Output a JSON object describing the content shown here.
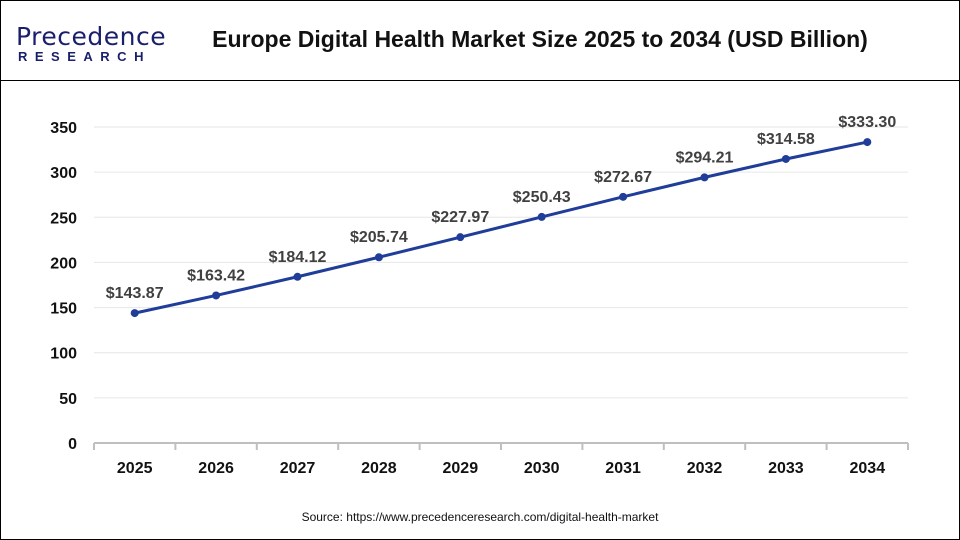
{
  "logo": {
    "main": "Precedence",
    "sub": "RESEARCH"
  },
  "source": "Source:  https://www.precedenceresearch.com/digital-health-market",
  "chart_data": {
    "type": "line",
    "title": "Europe Digital Health Market Size 2025 to 2034 (USD Billion)",
    "xlabel": "",
    "ylabel": "",
    "categories": [
      "2025",
      "2026",
      "2027",
      "2028",
      "2029",
      "2030",
      "2031",
      "2032",
      "2033",
      "2034"
    ],
    "values": [
      143.87,
      163.42,
      184.12,
      205.74,
      227.97,
      250.43,
      272.67,
      294.21,
      314.58,
      333.3
    ],
    "data_labels": [
      "$143.87",
      "$163.42",
      "$184.12",
      "$205.74",
      "$227.97",
      "$250.43",
      "$272.67",
      "$294.21",
      "$314.58",
      "$333.30"
    ],
    "yticks": [
      0,
      50,
      100,
      150,
      200,
      250,
      300,
      350
    ],
    "ylim": [
      0,
      350
    ],
    "grid": true,
    "line_color": "#1f3d99"
  }
}
